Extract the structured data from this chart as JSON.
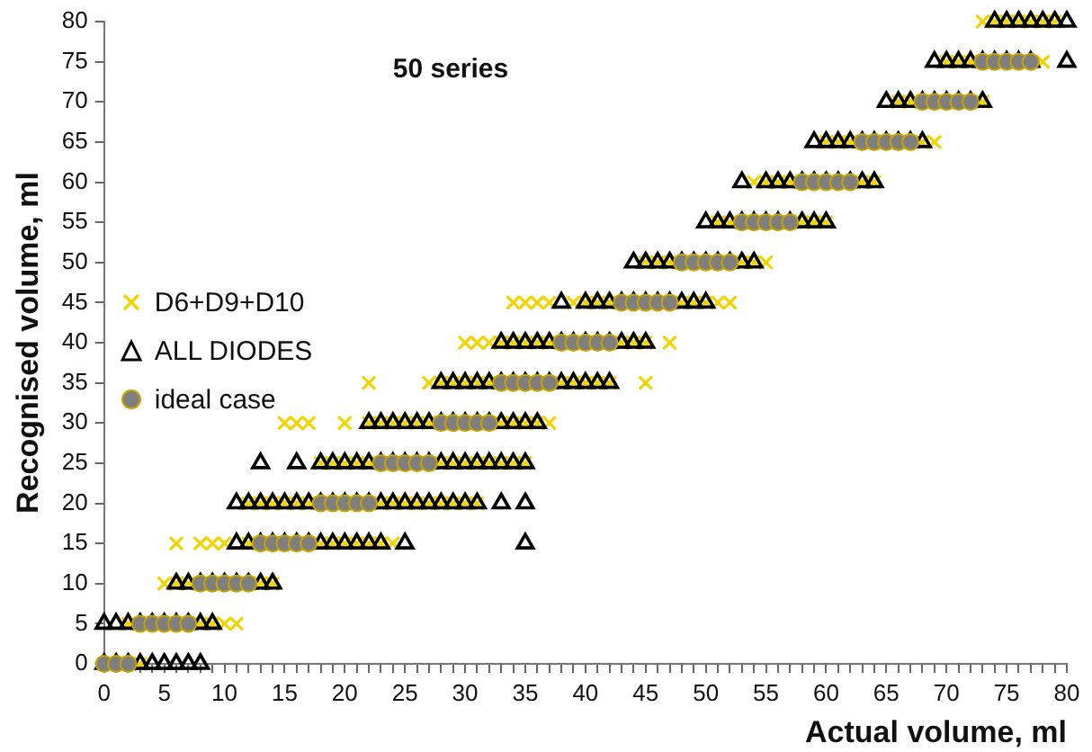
{
  "chart_data": {
    "type": "scatter",
    "title": "50 series",
    "xlabel": "Actual volume, ml",
    "ylabel": "Recognised volume, ml",
    "legend": "left",
    "grid": false,
    "xlim": [
      0,
      80
    ],
    "ylim": [
      0,
      80
    ],
    "xticks": [
      0,
      {
        "value": 1,
        "label": null
      },
      {
        "value": 2,
        "label": null
      },
      {
        "value": 3,
        "label": null
      },
      {
        "value": 4,
        "label": null
      },
      5,
      {
        "value": 6,
        "label": null
      },
      {
        "value": 7,
        "label": null
      },
      {
        "value": 8,
        "label": null
      },
      {
        "value": 9,
        "label": null
      },
      10,
      {
        "value": 11,
        "label": null
      },
      {
        "value": 12,
        "label": null
      },
      {
        "value": 13,
        "label": null
      },
      {
        "value": 14,
        "label": null
      },
      15,
      {
        "value": 16,
        "label": null
      },
      {
        "value": 17,
        "label": null
      },
      {
        "value": 18,
        "label": null
      },
      {
        "value": 19,
        "label": null
      },
      20,
      {
        "value": 21,
        "label": null
      },
      {
        "value": 22,
        "label": null
      },
      {
        "value": 23,
        "label": null
      },
      {
        "value": 24,
        "label": null
      },
      25,
      {
        "value": 26,
        "label": null
      },
      {
        "value": 27,
        "label": null
      },
      {
        "value": 28,
        "label": null
      },
      {
        "value": 29,
        "label": null
      },
      30,
      {
        "value": 31,
        "label": null
      },
      {
        "value": 32,
        "label": null
      },
      {
        "value": 33,
        "label": null
      },
      {
        "value": 34,
        "label": null
      },
      35,
      {
        "value": 36,
        "label": null
      },
      {
        "value": 37,
        "label": null
      },
      {
        "value": 38,
        "label": null
      },
      {
        "value": 39,
        "label": null
      },
      40,
      {
        "value": 41,
        "label": null
      },
      {
        "value": 42,
        "label": null
      },
      {
        "value": 43,
        "label": null
      },
      {
        "value": 44,
        "label": null
      },
      45,
      {
        "value": 46,
        "label": null
      },
      {
        "value": 47,
        "label": null
      },
      {
        "value": 48,
        "label": null
      },
      {
        "value": 49,
        "label": null
      },
      50,
      {
        "value": 51,
        "label": null
      },
      {
        "value": 52,
        "label": null
      },
      {
        "value": 53,
        "label": null
      },
      {
        "value": 54,
        "label": null
      },
      55,
      {
        "value": 56,
        "label": null
      },
      {
        "value": 57,
        "label": null
      },
      {
        "value": 58,
        "label": null
      },
      {
        "value": 59,
        "label": null
      },
      60,
      {
        "value": 61,
        "label": null
      },
      {
        "value": 62,
        "label": null
      },
      {
        "value": 63,
        "label": null
      },
      {
        "value": 64,
        "label": null
      },
      65,
      {
        "value": 66,
        "label": null
      },
      {
        "value": 67,
        "label": null
      },
      {
        "value": 68,
        "label": null
      },
      {
        "value": 69,
        "label": null
      },
      70,
      {
        "value": 71,
        "label": null
      },
      {
        "value": 72,
        "label": null
      },
      {
        "value": 73,
        "label": null
      },
      {
        "value": 74,
        "label": null
      },
      75,
      {
        "value": 76,
        "label": null
      },
      {
        "value": 77,
        "label": null
      },
      {
        "value": 78,
        "label": null
      },
      {
        "value": 79,
        "label": null
      },
      80
    ],
    "yticks": [
      0,
      5,
      10,
      15,
      20,
      25,
      30,
      35,
      40,
      45,
      50,
      55,
      60,
      65,
      70,
      75,
      80
    ],
    "series": [
      {
        "name": "D6+D9+D10",
        "color": "#f2d400",
        "marker": "cross",
        "x": [
          0,
          1,
          2,
          3,
          2,
          3,
          4,
          5,
          6,
          7,
          8,
          9,
          10,
          11,
          5,
          6,
          7,
          8,
          9,
          10,
          11,
          12,
          13,
          14,
          6,
          8,
          9,
          10,
          12,
          13,
          14,
          15,
          16,
          17,
          18,
          19,
          20,
          21,
          22,
          23,
          24,
          12,
          13,
          14,
          15,
          16,
          17,
          18,
          19,
          20,
          21,
          22,
          23,
          24,
          25,
          26,
          27,
          28,
          29,
          30,
          31,
          18,
          19,
          20,
          21,
          22,
          23,
          24,
          25,
          26,
          27,
          28,
          29,
          30,
          31,
          32,
          33,
          34,
          35,
          15,
          16,
          17,
          20,
          22,
          23,
          24,
          25,
          26,
          27,
          28,
          29,
          30,
          31,
          32,
          33,
          34,
          35,
          36,
          37,
          22,
          27,
          28,
          29,
          30,
          31,
          32,
          33,
          34,
          35,
          36,
          37,
          38,
          39,
          40,
          41,
          42,
          45,
          30,
          31,
          32,
          33,
          34,
          35,
          36,
          37,
          38,
          39,
          40,
          41,
          42,
          43,
          44,
          45,
          47,
          34,
          35,
          36,
          37,
          39,
          40,
          41,
          42,
          43,
          44,
          45,
          46,
          47,
          48,
          49,
          50,
          51,
          52,
          45,
          46,
          47,
          48,
          49,
          50,
          51,
          52,
          53,
          54,
          55,
          51,
          52,
          53,
          54,
          55,
          56,
          57,
          58,
          59,
          60,
          54,
          55,
          56,
          57,
          58,
          59,
          60,
          61,
          62,
          63,
          64,
          60,
          61,
          62,
          63,
          64,
          65,
          66,
          67,
          68,
          69,
          66,
          67,
          68,
          69,
          70,
          71,
          72,
          73,
          70,
          71,
          72,
          73,
          74,
          75,
          76,
          77,
          78,
          73,
          74,
          75,
          76,
          77,
          78,
          79
        ],
        "values": [
          0,
          0,
          0,
          0,
          5,
          5,
          5,
          5,
          5,
          5,
          5,
          5,
          5,
          5,
          10,
          10,
          10,
          10,
          10,
          10,
          10,
          10,
          10,
          10,
          15,
          15,
          15,
          15,
          15,
          15,
          15,
          15,
          15,
          15,
          15,
          15,
          15,
          15,
          15,
          15,
          15,
          20,
          20,
          20,
          20,
          20,
          20,
          20,
          20,
          20,
          20,
          20,
          20,
          20,
          20,
          20,
          20,
          20,
          20,
          20,
          20,
          25,
          25,
          25,
          25,
          25,
          25,
          25,
          25,
          25,
          25,
          25,
          25,
          25,
          25,
          25,
          25,
          25,
          25,
          30,
          30,
          30,
          30,
          30,
          30,
          30,
          30,
          30,
          30,
          30,
          30,
          30,
          30,
          30,
          30,
          30,
          30,
          30,
          30,
          35,
          35,
          35,
          35,
          35,
          35,
          35,
          35,
          35,
          35,
          35,
          35,
          35,
          35,
          35,
          35,
          35,
          35,
          40,
          40,
          40,
          40,
          40,
          40,
          40,
          40,
          40,
          40,
          40,
          40,
          40,
          40,
          40,
          40,
          40,
          45,
          45,
          45,
          45,
          45,
          45,
          45,
          45,
          45,
          45,
          45,
          45,
          45,
          45,
          45,
          45,
          45,
          45,
          50,
          50,
          50,
          50,
          50,
          50,
          50,
          50,
          50,
          50,
          50,
          55,
          55,
          55,
          55,
          55,
          55,
          55,
          55,
          55,
          55,
          60,
          60,
          60,
          60,
          60,
          60,
          60,
          60,
          60,
          60,
          60,
          65,
          65,
          65,
          65,
          65,
          65,
          65,
          65,
          65,
          65,
          70,
          70,
          70,
          70,
          70,
          70,
          70,
          70,
          75,
          75,
          75,
          75,
          75,
          75,
          75,
          75,
          75,
          80,
          80,
          80,
          80,
          80,
          80,
          80
        ]
      },
      {
        "name": "ALL DIODES",
        "color": "#000000",
        "marker": "triangle",
        "x": [
          0,
          1,
          2,
          3,
          4,
          5,
          6,
          7,
          8,
          0,
          1,
          2,
          3,
          4,
          5,
          6,
          7,
          8,
          9,
          6,
          7,
          8,
          9,
          10,
          11,
          12,
          13,
          14,
          11,
          12,
          13,
          14,
          15,
          16,
          17,
          18,
          19,
          20,
          21,
          22,
          23,
          25,
          35,
          11,
          12,
          13,
          14,
          15,
          16,
          17,
          18,
          19,
          20,
          21,
          22,
          23,
          24,
          25,
          26,
          27,
          28,
          29,
          30,
          31,
          33,
          35,
          13,
          16,
          18,
          19,
          20,
          21,
          22,
          23,
          24,
          25,
          26,
          27,
          28,
          29,
          30,
          31,
          32,
          33,
          34,
          35,
          22,
          23,
          24,
          25,
          26,
          27,
          28,
          29,
          30,
          31,
          32,
          33,
          34,
          35,
          36,
          28,
          29,
          30,
          31,
          32,
          33,
          34,
          35,
          36,
          37,
          38,
          39,
          40,
          41,
          42,
          33,
          34,
          35,
          36,
          37,
          38,
          39,
          40,
          41,
          42,
          43,
          44,
          45,
          38,
          40,
          41,
          42,
          43,
          44,
          45,
          46,
          47,
          48,
          49,
          50,
          44,
          45,
          46,
          47,
          48,
          49,
          50,
          51,
          52,
          53,
          54,
          50,
          51,
          52,
          53,
          54,
          55,
          56,
          57,
          58,
          59,
          60,
          53,
          55,
          56,
          57,
          58,
          59,
          60,
          61,
          62,
          63,
          64,
          59,
          60,
          61,
          62,
          63,
          64,
          65,
          66,
          67,
          68,
          65,
          66,
          67,
          68,
          69,
          70,
          71,
          72,
          73,
          69,
          70,
          71,
          72,
          73,
          74,
          75,
          76,
          77,
          80,
          74,
          75,
          76,
          77,
          78,
          79,
          80
        ],
        "values": [
          0,
          0,
          0,
          0,
          0,
          0,
          0,
          0,
          0,
          5,
          5,
          5,
          5,
          5,
          5,
          5,
          5,
          5,
          5,
          10,
          10,
          10,
          10,
          10,
          10,
          10,
          10,
          10,
          15,
          15,
          15,
          15,
          15,
          15,
          15,
          15,
          15,
          15,
          15,
          15,
          15,
          15,
          15,
          20,
          20,
          20,
          20,
          20,
          20,
          20,
          20,
          20,
          20,
          20,
          20,
          20,
          20,
          20,
          20,
          20,
          20,
          20,
          20,
          20,
          20,
          20,
          25,
          25,
          25,
          25,
          25,
          25,
          25,
          25,
          25,
          25,
          25,
          25,
          25,
          25,
          25,
          25,
          25,
          25,
          25,
          25,
          30,
          30,
          30,
          30,
          30,
          30,
          30,
          30,
          30,
          30,
          30,
          30,
          30,
          30,
          30,
          35,
          35,
          35,
          35,
          35,
          35,
          35,
          35,
          35,
          35,
          35,
          35,
          35,
          35,
          35,
          40,
          40,
          40,
          40,
          40,
          40,
          40,
          40,
          40,
          40,
          40,
          40,
          40,
          45,
          45,
          45,
          45,
          45,
          45,
          45,
          45,
          45,
          45,
          45,
          45,
          50,
          50,
          50,
          50,
          50,
          50,
          50,
          50,
          50,
          50,
          50,
          55,
          55,
          55,
          55,
          55,
          55,
          55,
          55,
          55,
          55,
          55,
          60,
          60,
          60,
          60,
          60,
          60,
          60,
          60,
          60,
          60,
          60,
          65,
          65,
          65,
          65,
          65,
          65,
          65,
          65,
          65,
          65,
          70,
          70,
          70,
          70,
          70,
          70,
          70,
          70,
          70,
          75,
          75,
          75,
          75,
          75,
          75,
          75,
          75,
          75,
          75,
          80,
          80,
          80,
          80,
          80,
          80,
          80
        ]
      },
      {
        "name": "ideal case",
        "color": "#7f7f7f",
        "marker": "circle",
        "x": [
          0,
          1,
          2,
          3,
          4,
          5,
          6,
          7,
          8,
          9,
          10,
          11,
          12,
          13,
          14,
          15,
          16,
          17,
          18,
          19,
          20,
          21,
          22,
          23,
          24,
          25,
          26,
          27,
          28,
          29,
          30,
          31,
          32,
          33,
          34,
          35,
          36,
          37,
          38,
          39,
          40,
          41,
          42,
          43,
          44,
          45,
          46,
          47,
          48,
          49,
          50,
          51,
          52,
          53,
          54,
          55,
          56,
          57,
          58,
          59,
          60,
          61,
          62,
          63,
          64,
          65,
          66,
          67,
          68,
          69,
          70,
          71,
          72,
          73,
          74,
          75,
          76,
          77
        ],
        "values": [
          0,
          0,
          0,
          5,
          5,
          5,
          5,
          5,
          10,
          10,
          10,
          10,
          10,
          15,
          15,
          15,
          15,
          15,
          20,
          20,
          20,
          20,
          20,
          25,
          25,
          25,
          25,
          25,
          30,
          30,
          30,
          30,
          30,
          35,
          35,
          35,
          35,
          35,
          40,
          40,
          40,
          40,
          40,
          45,
          45,
          45,
          45,
          45,
          50,
          50,
          50,
          50,
          50,
          55,
          55,
          55,
          55,
          55,
          60,
          60,
          60,
          60,
          60,
          65,
          65,
          65,
          65,
          65,
          70,
          70,
          70,
          70,
          70,
          75,
          75,
          75,
          75,
          75
        ]
      }
    ]
  }
}
